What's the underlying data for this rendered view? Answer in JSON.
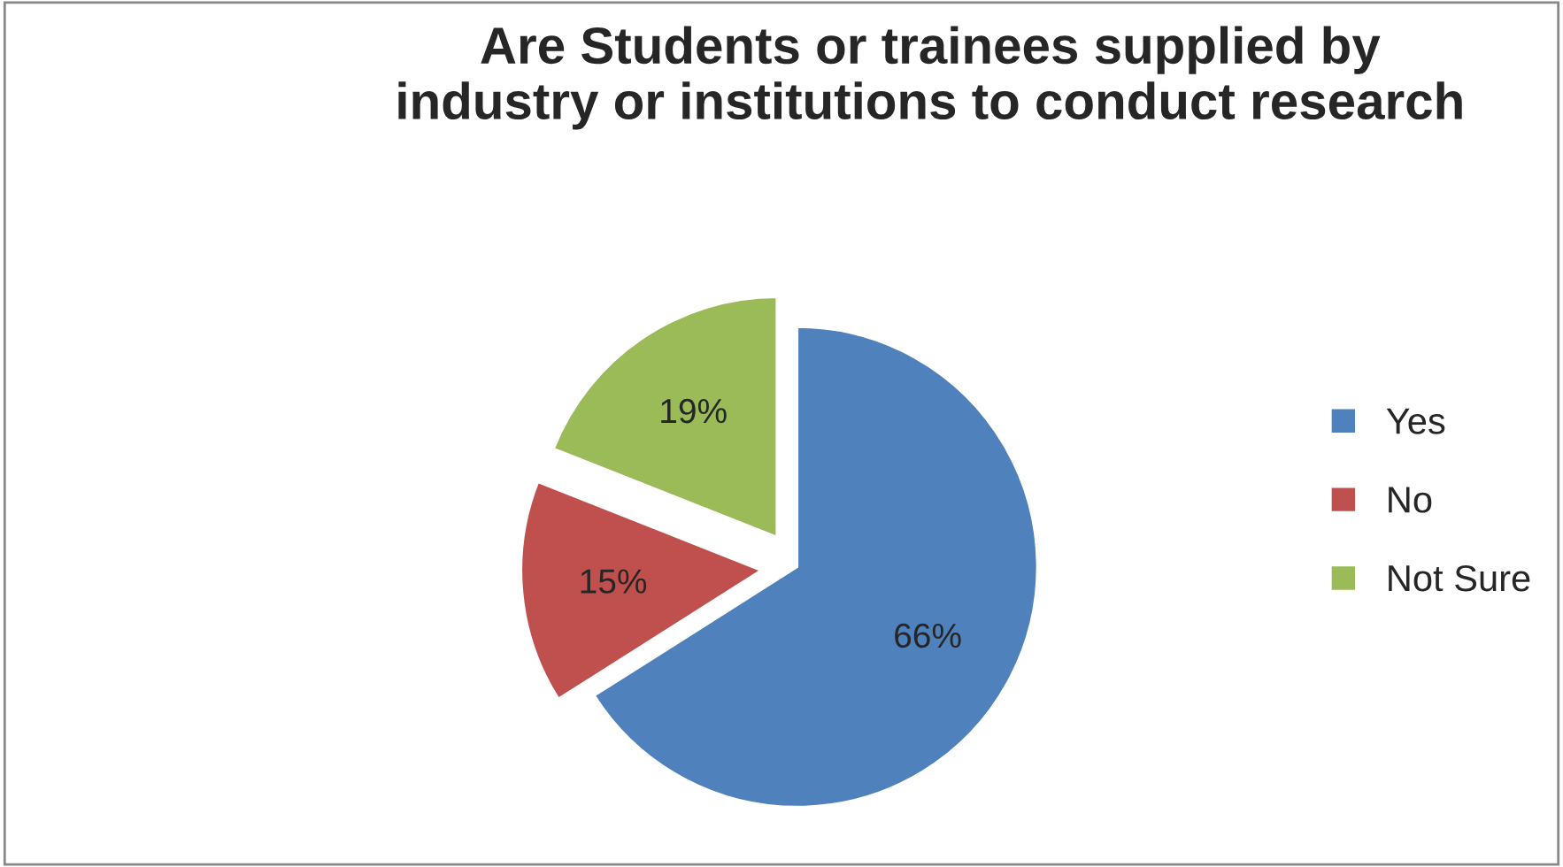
{
  "chart_data": {
    "type": "pie",
    "title": "Are Students or trainees supplied by\nindustry or institutions to conduct research",
    "categories": [
      "Yes",
      "No",
      "Not Sure"
    ],
    "values": [
      66,
      15,
      19
    ],
    "value_labels": [
      "66%",
      "15%",
      "19%"
    ],
    "colors": [
      "#4f81bd",
      "#c0504d",
      "#9bbb59"
    ],
    "legend": "right"
  }
}
